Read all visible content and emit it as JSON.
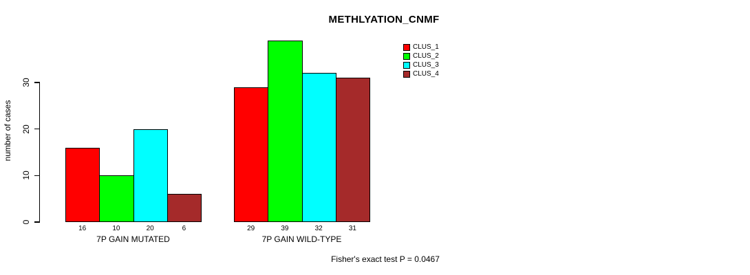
{
  "chart_data": {
    "type": "bar",
    "title": "METHLYATION_CNMF",
    "xlabel": "",
    "ylabel": "number of cases",
    "categories": [
      "7P GAIN MUTATED",
      "7P GAIN WILD-TYPE"
    ],
    "series": [
      {
        "name": "CLUS_1",
        "color": "#FF0000",
        "values": [
          16,
          29
        ]
      },
      {
        "name": "CLUS_2",
        "color": "#00FF00",
        "values": [
          10,
          39
        ]
      },
      {
        "name": "CLUS_3",
        "color": "#00FFFF",
        "values": [
          20,
          32
        ]
      },
      {
        "name": "CLUS_4",
        "color": "#A52A2A",
        "values": [
          6,
          31
        ]
      }
    ],
    "yticks": [
      0,
      10,
      20,
      30
    ],
    "ylim": [
      0,
      39
    ],
    "grid": false,
    "bar_value_labels": true,
    "legend_position": "top-right",
    "annotation": "Fisher's exact test P = 0.0467"
  }
}
